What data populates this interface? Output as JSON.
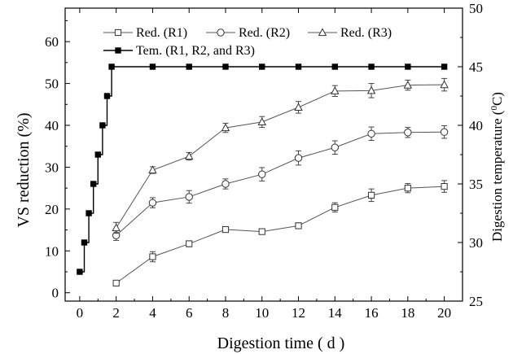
{
  "chart_data": {
    "type": "line",
    "xlabel": "Digestion time ( d )",
    "ylabel_left": "VS reduction (%)",
    "ylabel_right_main": "Digestion temperature (",
    "ylabel_right_sup": "0",
    "ylabel_right_end": "C)",
    "xlim": [
      -0.8,
      21
    ],
    "ylim_left": [
      -2,
      68
    ],
    "ylim_right": [
      25,
      50
    ],
    "x_ticks": [
      "0",
      "2",
      "4",
      "6",
      "8",
      "10",
      "12",
      "14",
      "16",
      "18",
      "20"
    ],
    "y_left_ticks": [
      "0",
      "10",
      "20",
      "30",
      "40",
      "50",
      "60"
    ],
    "y_right_ticks": [
      "25",
      "30",
      "35",
      "40",
      "45",
      "50"
    ],
    "legend": {
      "position": "top-left",
      "items": [
        "Red. (R1)",
        "Red. (R2)",
        "Red. (R3)",
        "Tem. (R1, R2, and R3)"
      ]
    },
    "series": [
      {
        "name": "Red. (R1)",
        "marker": "square-open",
        "axis": "left",
        "x": [
          2,
          4,
          6,
          8,
          10,
          12,
          14,
          16,
          18,
          20
        ],
        "y": [
          2.3,
          8.6,
          11.7,
          15.1,
          14.6,
          16.0,
          20.4,
          23.3,
          25.0,
          25.4
        ],
        "err": [
          0.4,
          1.2,
          0.7,
          0.6,
          0.6,
          0.7,
          1.1,
          1.5,
          1.1,
          1.4
        ]
      },
      {
        "name": "Red. (R2)",
        "marker": "circle-open",
        "axis": "left",
        "x": [
          2,
          4,
          6,
          8,
          10,
          12,
          14,
          16,
          18,
          20
        ],
        "y": [
          13.7,
          21.5,
          22.9,
          26.0,
          28.3,
          32.2,
          34.7,
          38.0,
          38.3,
          38.4
        ],
        "err": [
          1.2,
          1.2,
          1.5,
          1.2,
          1.6,
          1.7,
          1.6,
          1.6,
          1.2,
          1.5
        ]
      },
      {
        "name": "Red. (R3)",
        "marker": "triangle-open",
        "axis": "left",
        "x": [
          2,
          4,
          6,
          8,
          10,
          12,
          14,
          16,
          18,
          20
        ],
        "y": [
          15.5,
          29.3,
          32.6,
          39.4,
          40.8,
          44.3,
          48.2,
          48.3,
          49.6,
          49.7
        ],
        "err": [
          1.3,
          0.8,
          0.9,
          1.1,
          1.3,
          1.4,
          1.3,
          1.7,
          1.2,
          1.5
        ]
      },
      {
        "name": "Tem. (R1, R2, and R3)",
        "marker": "square-filled",
        "axis": "right",
        "step": true,
        "x": [
          0,
          0.25,
          0.5,
          0.75,
          1.0,
          1.25,
          1.5,
          1.75,
          4,
          6,
          8,
          10,
          12,
          14,
          16,
          18,
          20
        ],
        "y": [
          27.5,
          30.0,
          32.5,
          35.0,
          37.5,
          40.0,
          42.5,
          45.0,
          45,
          45,
          45,
          45,
          45,
          45,
          45,
          45,
          45
        ]
      }
    ]
  }
}
